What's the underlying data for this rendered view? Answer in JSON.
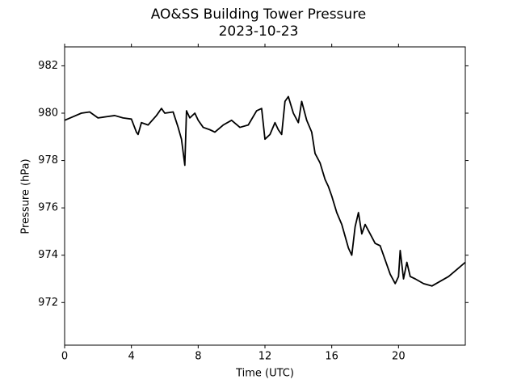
{
  "chart_data": {
    "type": "line",
    "title": "AO&SS Building Tower Pressure",
    "subtitle": "2023-10-23",
    "x_label": "Time (UTC)",
    "y_label": "Pressure (hPa)",
    "x": [
      0,
      0.5,
      1,
      1.5,
      2,
      2.5,
      3,
      3.5,
      4,
      4.3,
      4.4,
      4.6,
      5,
      5.5,
      5.8,
      6,
      6.5,
      6.8,
      7,
      7.2,
      7.3,
      7.5,
      7.8,
      8,
      8.3,
      8.7,
      9,
      9.5,
      10,
      10.5,
      11,
      11.5,
      11.8,
      12,
      12.3,
      12.6,
      12.8,
      13,
      13.2,
      13.4,
      13.7,
      14,
      14.2,
      14.5,
      14.8,
      15,
      15.3,
      15.6,
      15.8,
      16,
      16.3,
      16.6,
      16.8,
      17,
      17.2,
      17.4,
      17.6,
      17.8,
      18,
      18.3,
      18.6,
      18.9,
      19.2,
      19.5,
      19.8,
      20,
      20.1,
      20.3,
      20.5,
      20.7,
      21,
      21.5,
      22,
      22.5,
      23,
      23.5,
      24
    ],
    "series": [
      {
        "name": "Pressure",
        "color": "#000000",
        "values": [
          979.7,
          979.85,
          980.0,
          980.05,
          979.8,
          979.85,
          979.9,
          979.8,
          979.75,
          979.2,
          979.1,
          979.6,
          979.5,
          979.9,
          980.2,
          980.0,
          980.05,
          979.4,
          978.9,
          977.8,
          980.1,
          979.8,
          980.0,
          979.7,
          979.4,
          979.3,
          979.2,
          979.5,
          979.7,
          979.4,
          979.5,
          980.1,
          980.2,
          978.9,
          979.1,
          979.6,
          979.3,
          979.1,
          980.5,
          980.7,
          980.0,
          979.6,
          980.5,
          979.7,
          979.2,
          978.3,
          977.9,
          977.2,
          976.9,
          976.5,
          975.8,
          975.3,
          974.8,
          974.3,
          974.0,
          975.2,
          975.8,
          974.9,
          975.3,
          974.9,
          974.5,
          974.4,
          973.8,
          973.2,
          972.8,
          973.1,
          974.2,
          973.0,
          973.7,
          973.1,
          973.0,
          972.8,
          972.7,
          972.9,
          973.1,
          973.4,
          973.7
        ]
      }
    ],
    "xlim": [
      0,
      24
    ],
    "ylim": [
      970.2,
      982.8
    ],
    "xticks": [
      0,
      4,
      8,
      12,
      16,
      20
    ],
    "yticks": [
      972,
      974,
      976,
      978,
      980,
      982
    ]
  }
}
